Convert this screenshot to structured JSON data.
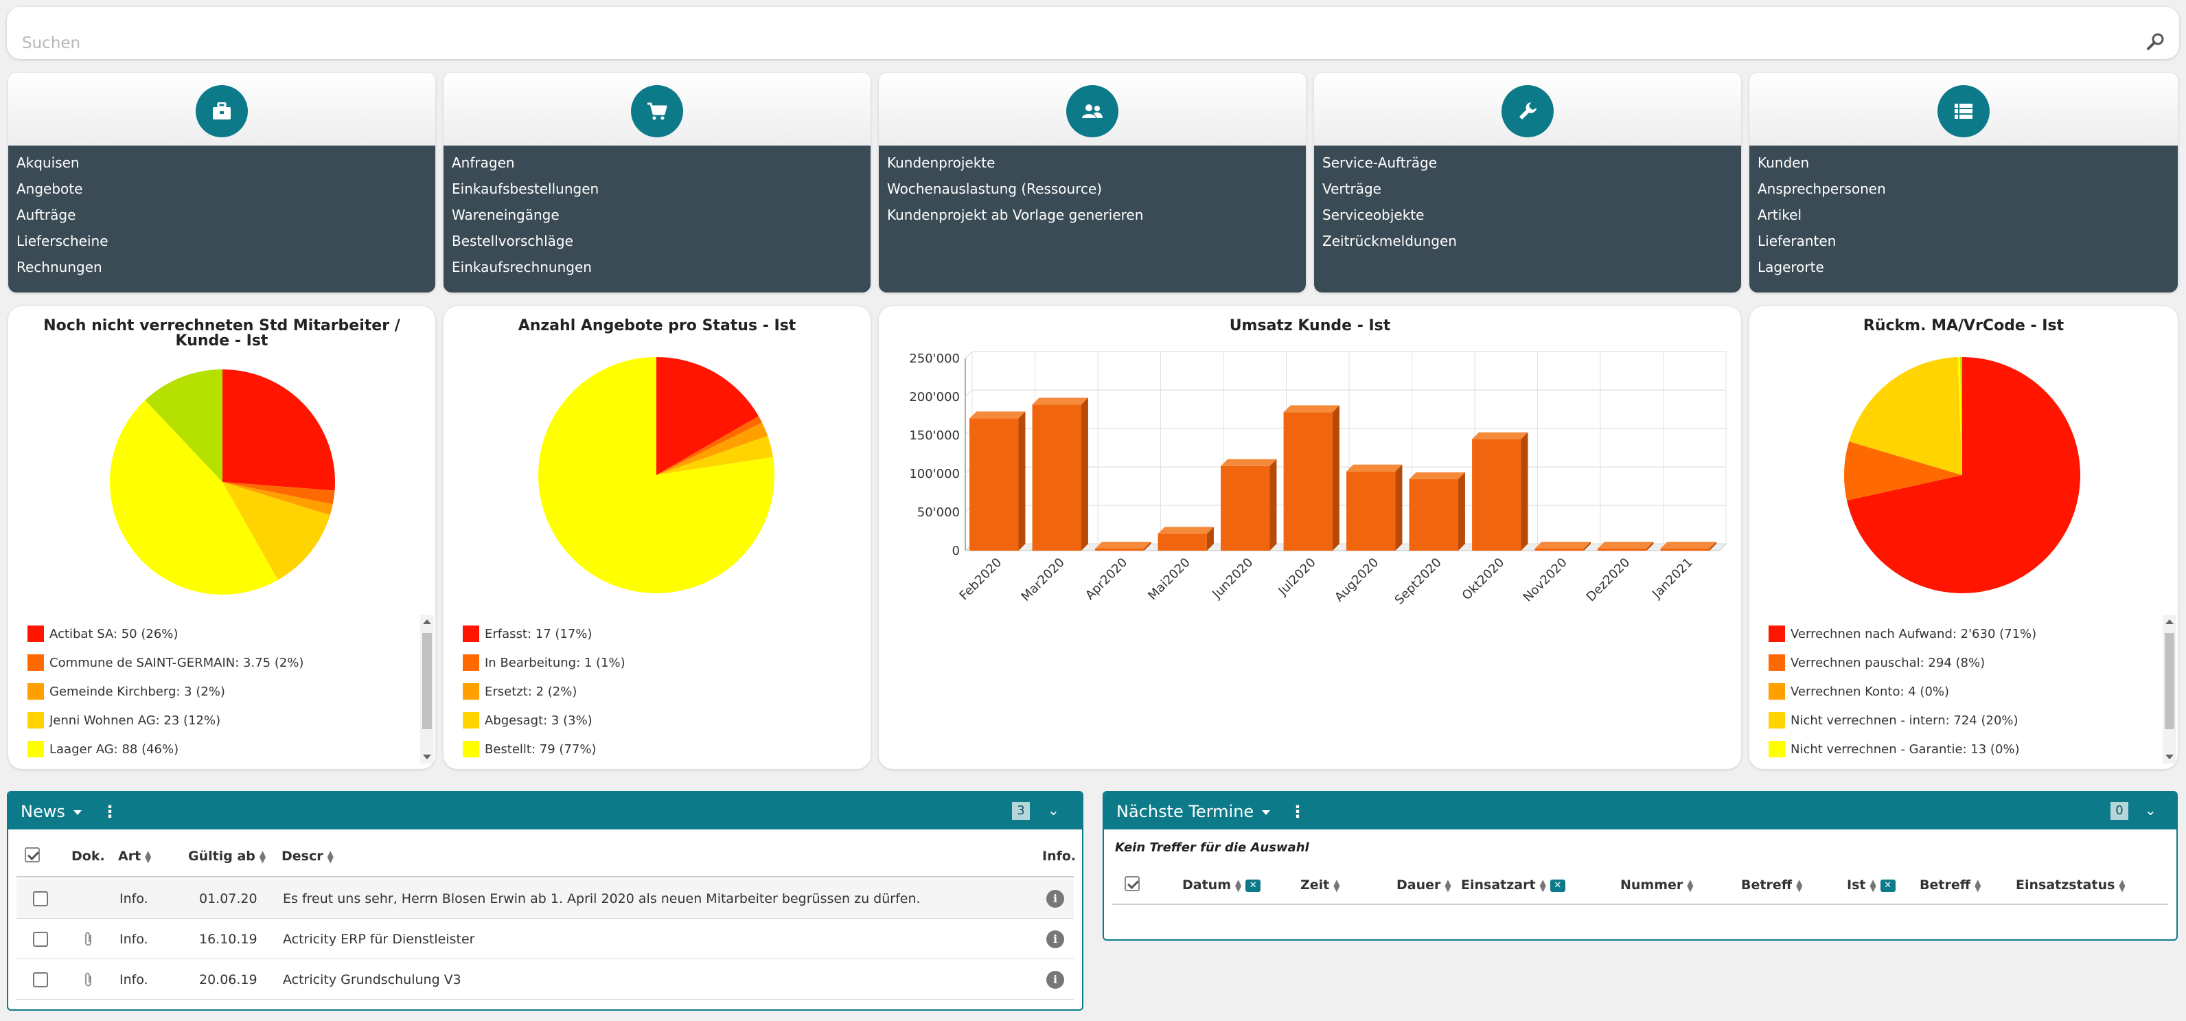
{
  "search": {
    "placeholder": "Suchen"
  },
  "tiles": [
    {
      "icon": "briefcase-icon",
      "items": [
        "Akquisen",
        "Angebote",
        "Aufträge",
        "Lieferscheine",
        "Rechnungen"
      ]
    },
    {
      "icon": "cart-icon",
      "items": [
        "Anfragen",
        "Einkaufsbestellungen",
        "Wareneingänge",
        "Bestellvorschläge",
        "Einkaufsrechnungen"
      ]
    },
    {
      "icon": "people-icon",
      "items": [
        "Kundenprojekte",
        "Wochenauslastung (Ressource)",
        "Kundenprojekt ab Vorlage generieren"
      ]
    },
    {
      "icon": "wrench-icon",
      "items": [
        "Service-Aufträge",
        "Verträge",
        "Serviceobjekte",
        "Zeitrückmeldungen"
      ]
    },
    {
      "icon": "list-icon",
      "items": [
        "Kunden",
        "Ansprechpersonen",
        "Artikel",
        "Lieferanten",
        "Lagerorte"
      ]
    }
  ],
  "chart_data": [
    {
      "type": "pie",
      "title": "Noch nicht verrechneten Std Mitarbeiter / Kunde - Ist",
      "slices": [
        {
          "label": "Actibat SA:",
          "value": 50,
          "pct": "26%",
          "color": "#ff1500"
        },
        {
          "label": "Commune de SAINT-GERMAIN:",
          "value": 3.75,
          "pct": "2%",
          "color": "#ff6a00"
        },
        {
          "label": "Gemeinde Kirchberg:",
          "value": 3,
          "pct": "2%",
          "color": "#ff9f00"
        },
        {
          "label": "Jenni Wohnen AG:",
          "value": 23,
          "pct": "12%",
          "color": "#ffd400"
        },
        {
          "label": "Laager AG:",
          "value": 88,
          "pct": "46%",
          "color": "#ffff00"
        },
        {
          "label": "",
          "value": 23,
          "pct": "",
          "color": "#b5e000"
        }
      ],
      "legend_text": [
        "Actibat SA:  50 (26%)",
        "Commune de SAINT-GERMAIN:  3.75 (2%)",
        "Gemeinde Kirchberg:  3 (2%)",
        "Jenni Wohnen AG:  23 (12%)",
        "Laager AG:  88 (46%)"
      ]
    },
    {
      "type": "pie",
      "title": "Anzahl Angebote pro Status - Ist",
      "slices": [
        {
          "label": "Erfasst:",
          "value": 17,
          "pct": "17%",
          "color": "#ff1500"
        },
        {
          "label": "In Bearbeitung:",
          "value": 1,
          "pct": "1%",
          "color": "#ff6a00"
        },
        {
          "label": "Ersetzt:",
          "value": 2,
          "pct": "2%",
          "color": "#ff9f00"
        },
        {
          "label": "Abgesagt:",
          "value": 3,
          "pct": "3%",
          "color": "#ffd400"
        },
        {
          "label": "Bestellt:",
          "value": 79,
          "pct": "77%",
          "color": "#ffff00"
        }
      ],
      "legend_text": [
        "Erfasst:  17 (17%)",
        "In Bearbeitung:  1 (1%)",
        "Ersetzt:  2 (2%)",
        "Abgesagt:  3 (3%)",
        "Bestellt:  79 (77%)"
      ]
    },
    {
      "type": "bar",
      "title": "Umsatz Kunde - Ist",
      "categories": [
        "Feb2020",
        "Mar2020",
        "Apr2020",
        "Mai2020",
        "Jun2020",
        "Jul2020",
        "Aug2020",
        "Sept2020",
        "Okt2020",
        "Nov2020",
        "Dez2020",
        "Jan2021"
      ],
      "values": [
        172000,
        190000,
        0,
        22000,
        110000,
        180000,
        103000,
        93000,
        145000,
        0,
        0,
        0
      ],
      "ylim": [
        0,
        250000
      ],
      "yticks": [
        "0",
        "50'000",
        "100'000",
        "150'000",
        "200'000",
        "250'000"
      ],
      "color": "#f0650e"
    },
    {
      "type": "pie",
      "title": "Rückm. MA/VrCode - Ist",
      "slices": [
        {
          "label": "Verrechnen nach Aufwand:",
          "value": 2630,
          "pct": "71%",
          "color": "#ff1500"
        },
        {
          "label": "Verrechnen pauschal:",
          "value": 294,
          "pct": "8%",
          "color": "#ff6a00"
        },
        {
          "label": "Verrechnen Konto:",
          "value": 4,
          "pct": "0%",
          "color": "#ff9f00"
        },
        {
          "label": "Nicht verrechnen - intern:",
          "value": 724,
          "pct": "20%",
          "color": "#ffd400"
        },
        {
          "label": "Nicht verrechnen - Garantie:",
          "value": 13,
          "pct": "0%",
          "color": "#ffff00"
        },
        {
          "label": "",
          "value": 10,
          "pct": "",
          "color": "#b5e000"
        }
      ],
      "legend_text": [
        "Verrechnen nach Aufwand:  2'630 (71%)",
        "Verrechnen pauschal:  294 (8%)",
        "Verrechnen Konto:  4 (0%)",
        "Nicht verrechnen - intern:  724 (20%)",
        "Nicht verrechnen - Garantie:  13 (0%)"
      ]
    }
  ],
  "news": {
    "title": "News",
    "count": "3",
    "columns": {
      "dok": "Dok.",
      "art": "Art",
      "gueltig": "Gültig ab",
      "descr": "Descr",
      "info": "Info."
    },
    "rows": [
      {
        "attach": false,
        "art": "Info.",
        "date": "01.07.20",
        "descr": "Es freut uns sehr, Herrn Blosen Erwin ab 1. April 2020 als neuen Mitarbeiter begrüssen zu dürfen."
      },
      {
        "attach": true,
        "art": "Info.",
        "date": "16.10.19",
        "descr": "Actricity ERP für Dienstleister"
      },
      {
        "attach": true,
        "art": "Info.",
        "date": "20.06.19",
        "descr": "Actricity Grundschulung V3"
      }
    ]
  },
  "termine": {
    "title": "Nächste Termine",
    "count": "0",
    "empty": "Kein Treffer für die Auswahl",
    "columns": {
      "datum": "Datum",
      "zeit": "Zeit",
      "dauer": "Dauer",
      "einsatzart": "Einsatzart",
      "nummer": "Nummer",
      "betreff": "Betreff",
      "ist": "Ist",
      "betreff2": "Betreff",
      "status": "Einsatzstatus"
    }
  }
}
